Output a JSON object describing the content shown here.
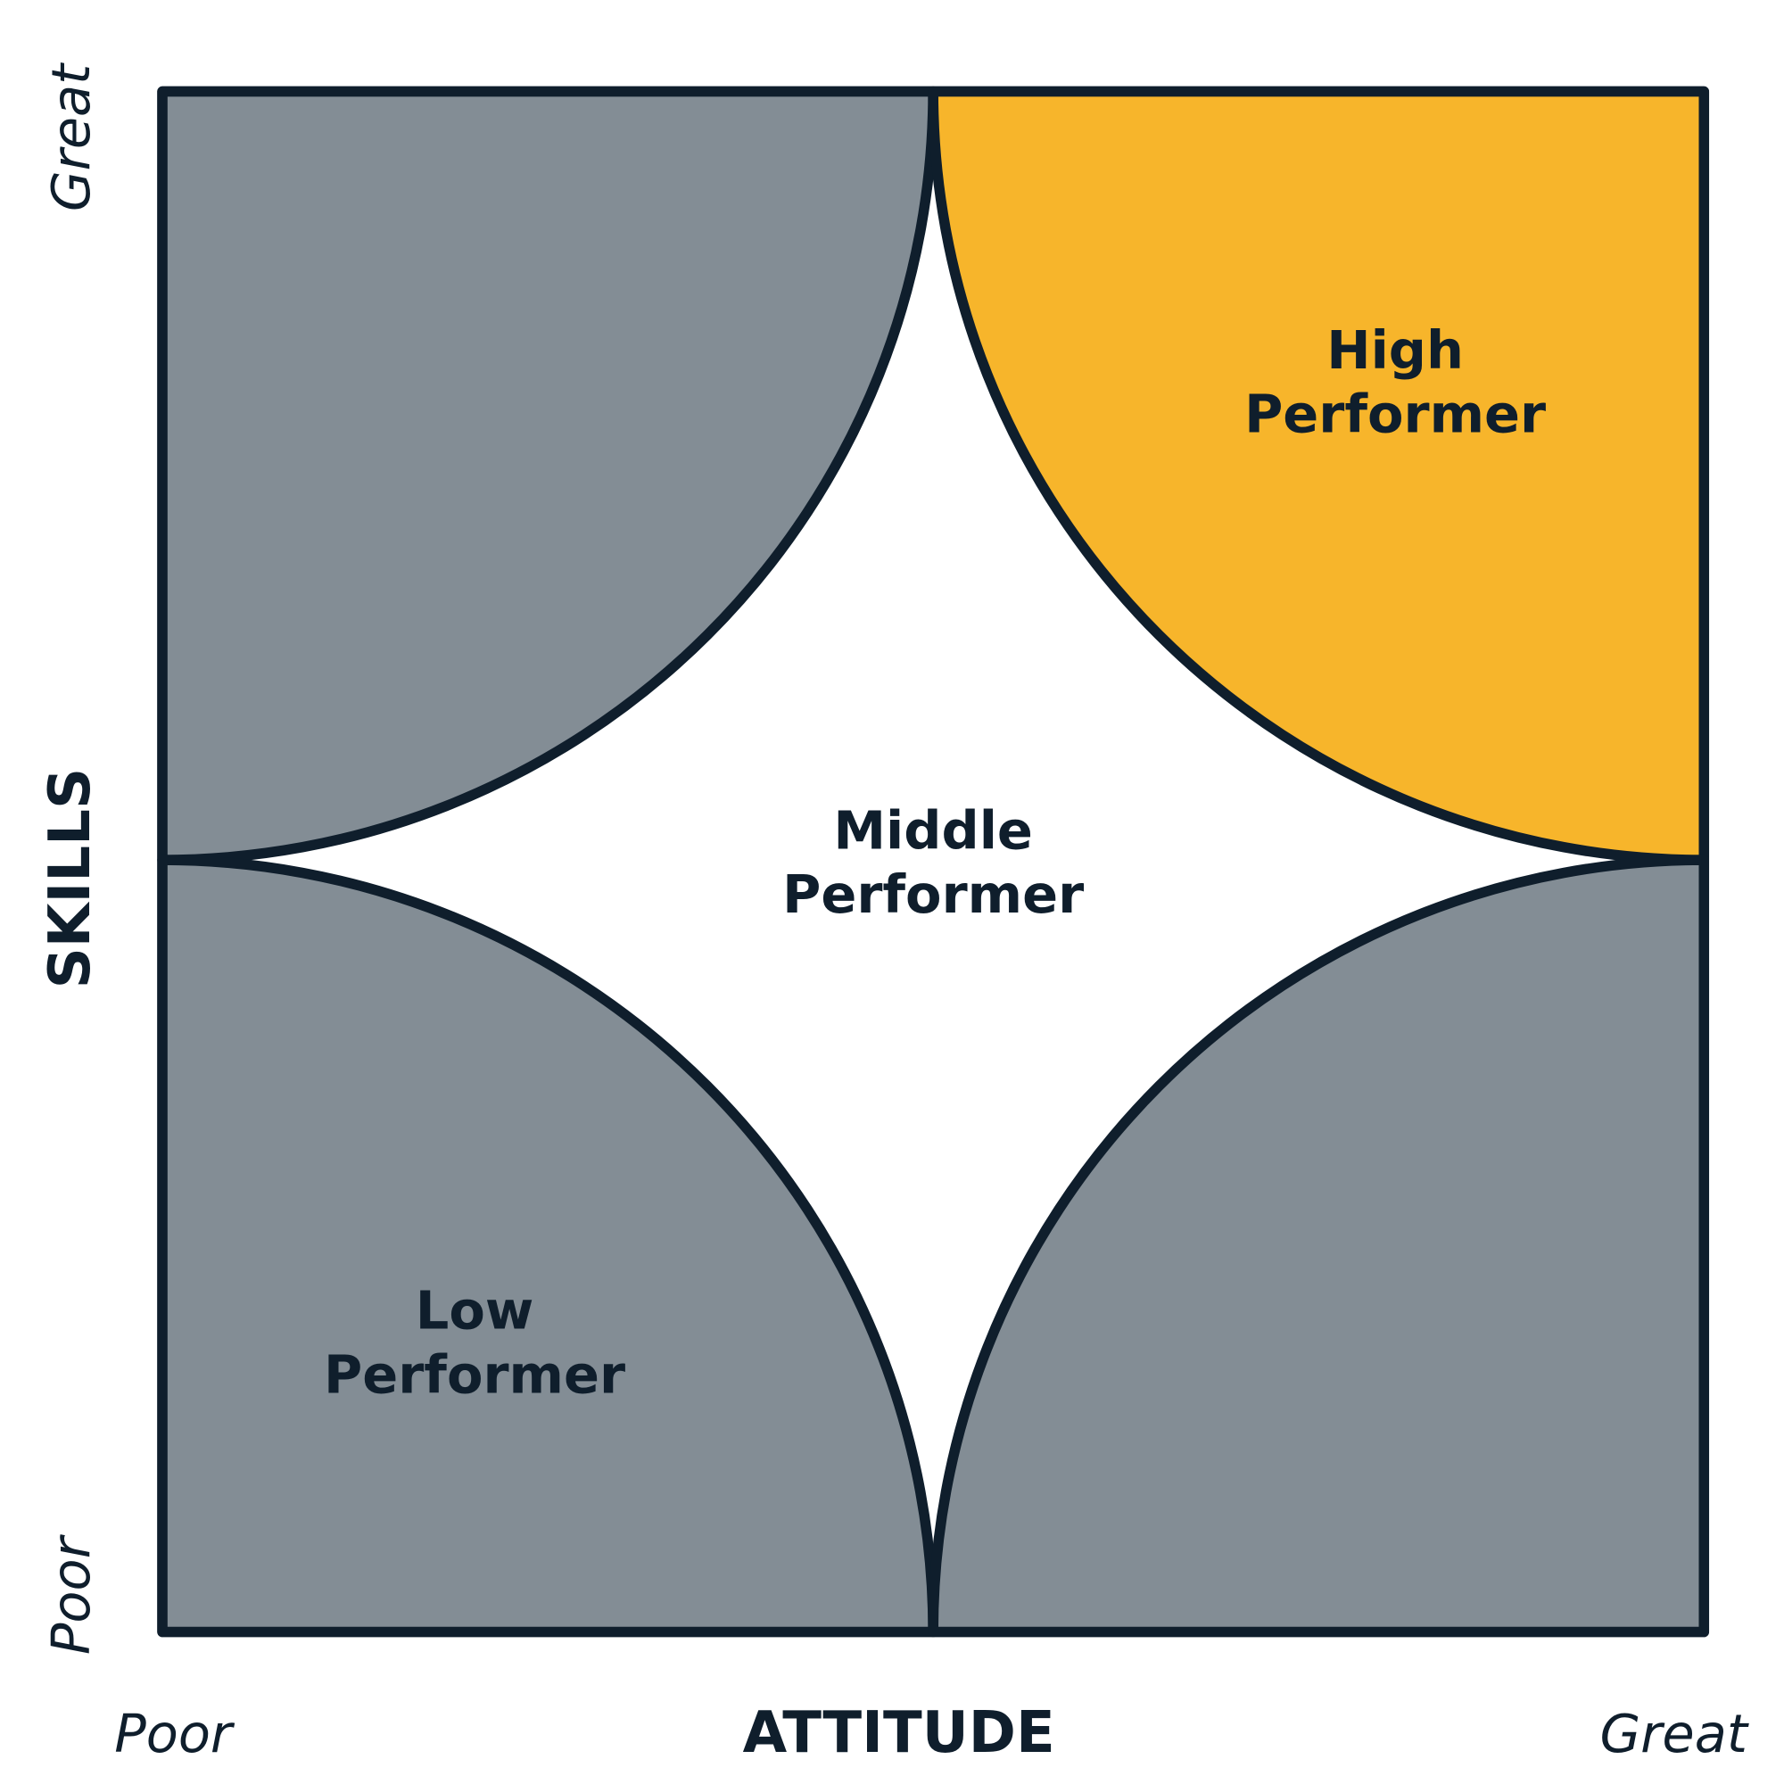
{
  "y_axis": {
    "label": "SKILLS",
    "low": "Poor",
    "high": "Great"
  },
  "x_axis": {
    "label": "ATTITUDE",
    "low": "Poor",
    "high": "Great"
  },
  "regions": [
    {
      "lines": [
        "High",
        "Performer"
      ]
    },
    {
      "lines": [
        "Middle",
        "Performer"
      ]
    },
    {
      "lines": [
        "Low",
        "Performer"
      ]
    }
  ]
}
